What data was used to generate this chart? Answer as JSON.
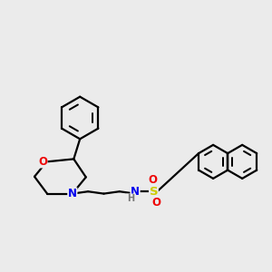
{
  "background_color": "#ebebeb",
  "line_color": "#000000",
  "bond_lw": 1.6,
  "atom_colors": {
    "N": "#0000ee",
    "O": "#ee0000",
    "S": "#cccc00",
    "H": "#555555"
  },
  "font_size": 8.5,
  "fig_w": 3.0,
  "fig_h": 3.0,
  "dpi": 100
}
